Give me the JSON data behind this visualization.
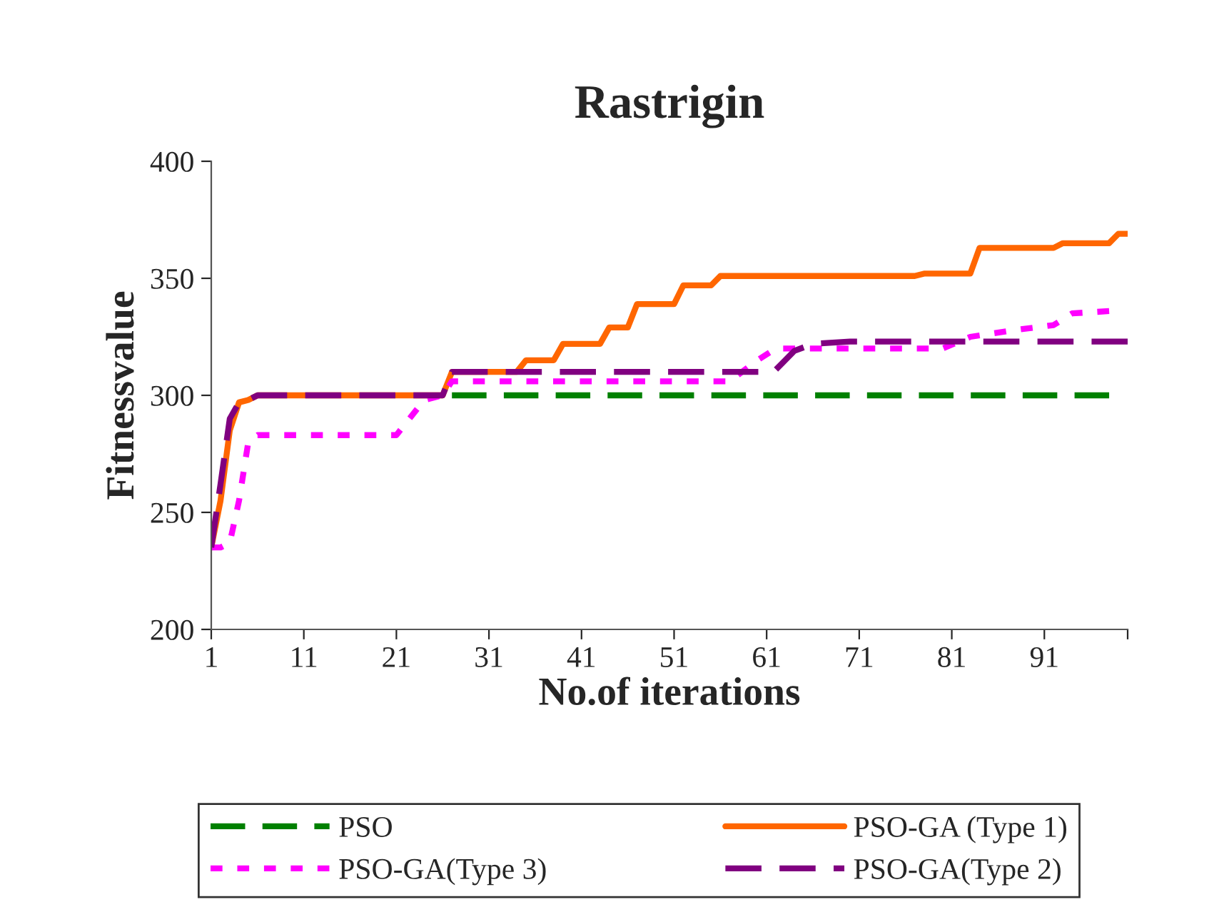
{
  "chart_data": {
    "type": "line",
    "title": "Rastrigin",
    "xlabel": "No.of iterations",
    "ylabel": "Fitnessvalue",
    "xlim": [
      1,
      100
    ],
    "xticks": [
      1,
      11,
      21,
      31,
      41,
      51,
      61,
      71,
      81,
      91,
      {
        "value": 100,
        "label": null
      }
    ],
    "ylim": [
      200,
      400
    ],
    "yticks": [
      200,
      250,
      300,
      350,
      400
    ],
    "grid": false,
    "legend": "bottom",
    "marker": "none",
    "series": [
      {
        "name": "PSO",
        "color": "#008000",
        "line_style": "dashed",
        "x": [
          27,
          98
        ],
        "values": [
          300,
          300
        ]
      },
      {
        "name": "PSO-GA (Type 1)",
        "color": "#ff6600",
        "line_style": "solid",
        "x": [
          1,
          2,
          3,
          4,
          5,
          6,
          26,
          27,
          34,
          35,
          38,
          39,
          43,
          44,
          46,
          47,
          51,
          52,
          55,
          56,
          77,
          78,
          83,
          84,
          92,
          93,
          98,
          99,
          100
        ],
        "values": [
          235,
          255,
          285,
          297,
          298,
          300,
          300,
          310,
          310,
          315,
          315,
          322,
          322,
          329,
          329,
          339,
          339,
          347,
          347,
          351,
          351,
          352,
          352,
          363,
          363,
          365,
          365,
          369,
          369
        ]
      },
      {
        "name": "PSO-GA(Type 3)",
        "color": "#ff00ff",
        "line_style": "dotted",
        "x": [
          1,
          2,
          3,
          4,
          5,
          6,
          21,
          24,
          26,
          27,
          57,
          60,
          62,
          80,
          83,
          88,
          92,
          94,
          98
        ],
        "values": [
          235,
          235,
          237,
          255,
          280,
          283,
          283,
          298,
          300,
          306,
          306,
          315,
          320,
          320,
          325,
          328,
          330,
          335,
          336
        ]
      },
      {
        "name": "PSO-GA(Type 2)",
        "color": "#800080",
        "line_style": "dashed",
        "x": [
          1,
          2,
          3,
          4,
          5,
          6,
          26,
          27,
          61,
          62,
          64,
          66,
          70,
          100
        ],
        "values": [
          235,
          262,
          290,
          297,
          298,
          300,
          300,
          310,
          310,
          311,
          319,
          322,
          323,
          323
        ]
      }
    ]
  }
}
